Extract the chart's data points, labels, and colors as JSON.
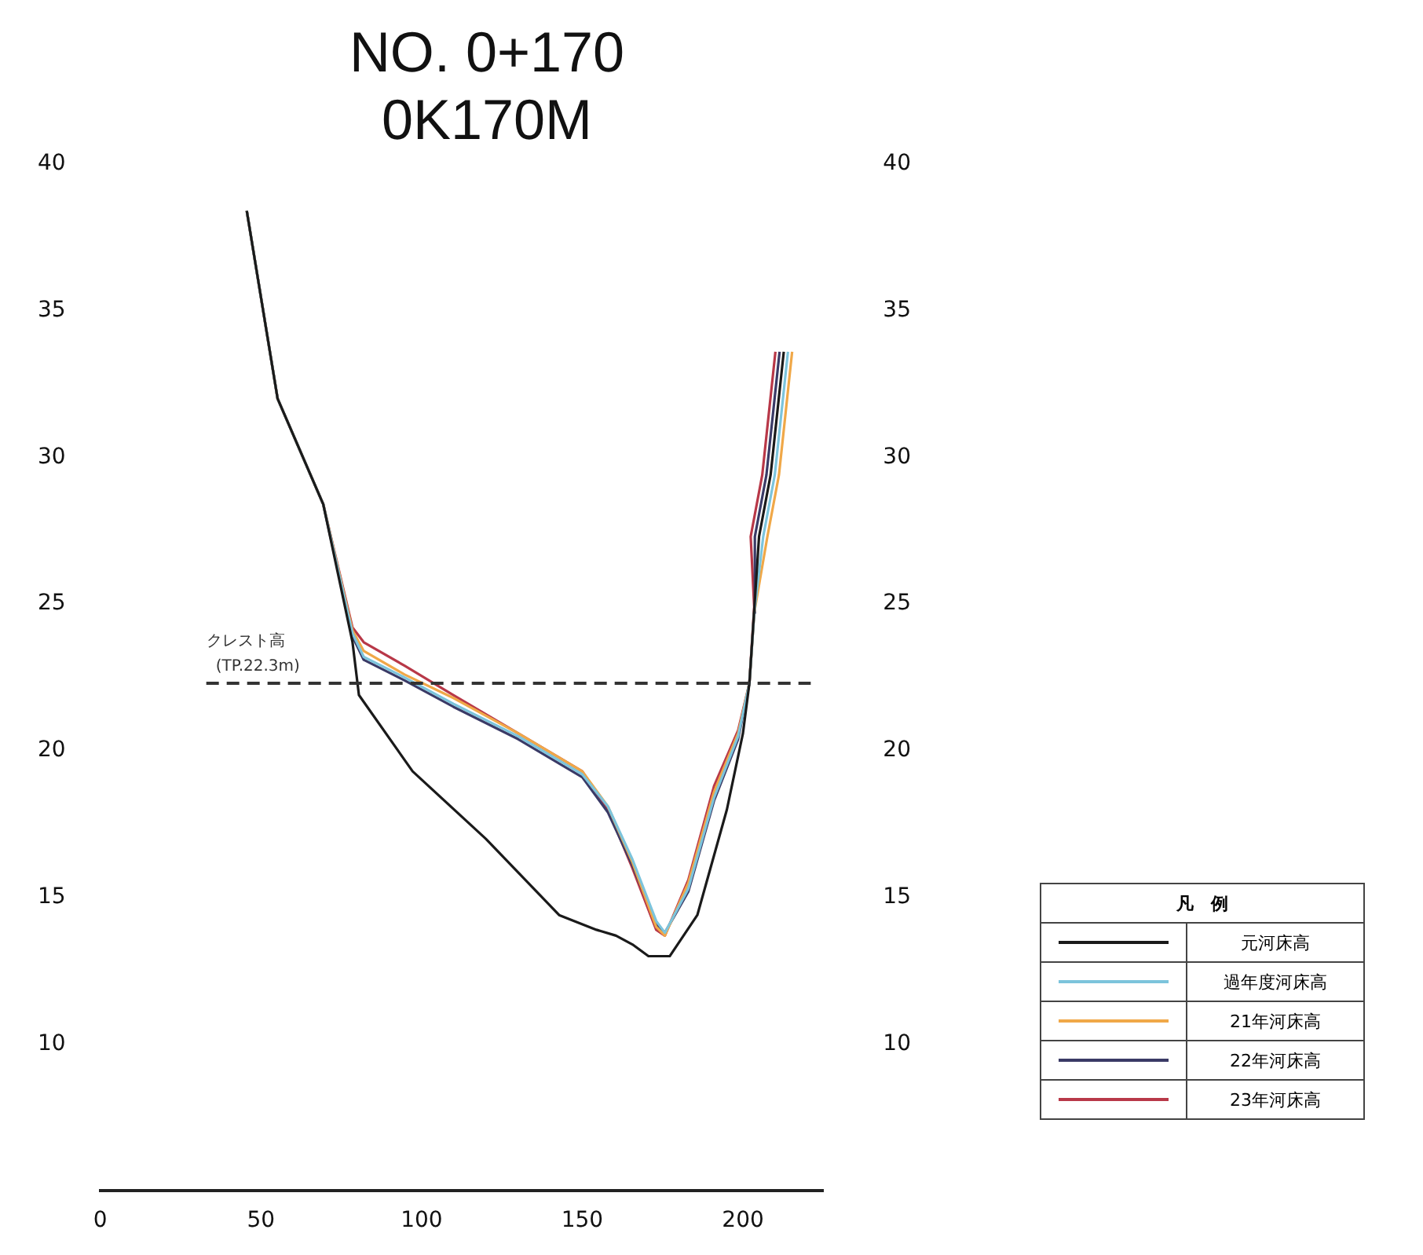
{
  "chart_data": {
    "type": "line",
    "title": "NO. 0+170",
    "subtitle": "0K170M",
    "legend_title": "凡　例",
    "legend": "right",
    "grid": false,
    "marker": "none",
    "line_style": "solid",
    "xlim": [
      0,
      225
    ],
    "xticks": [
      0,
      50,
      100,
      150,
      200
    ],
    "ylim": [
      5,
      40
    ],
    "yticks": [
      10,
      15,
      20,
      25,
      30,
      35,
      40
    ],
    "y2lim": [
      5,
      40
    ],
    "y2ticks": [
      10,
      15,
      20,
      25,
      30,
      35,
      40
    ],
    "ref_lines": [
      {
        "axis": "y",
        "value": 22.3,
        "label": "クレスト高 (TP.22.3m)",
        "color": "#333333",
        "line_style": "dashed"
      }
    ],
    "series": [
      {
        "name": "元河床高",
        "color": "#1a1a1a",
        "x": [
          45.6,
          55.2,
          69.4,
          78.5,
          80.5,
          97.2,
          120,
          142.8,
          154.4,
          160.5,
          165.6,
          170.6,
          177.2,
          185.8,
          195,
          200,
          202,
          205,
          208.6,
          212.7
        ],
        "values": [
          38.4,
          32,
          28.4,
          23.7,
          21.9,
          19.3,
          17,
          14.4,
          13.9,
          13.7,
          13.4,
          13,
          13,
          14.4,
          18,
          20.6,
          22.3,
          27.3,
          29.4,
          33.6
        ]
      },
      {
        "name": "過年度河床高",
        "color": "#7cc4dc",
        "x": [
          45.6,
          55.2,
          69.4,
          78.5,
          82,
          94.7,
          109.9,
          130,
          150,
          158,
          165.6,
          173,
          175.7,
          183,
          191,
          198.5,
          202,
          203.5,
          206.3,
          209.9,
          214
        ],
        "values": [
          38.4,
          32,
          28.4,
          24,
          23.2,
          22.5,
          21.6,
          20.5,
          19.2,
          18.1,
          16.3,
          14.2,
          13.8,
          15.3,
          18.4,
          20.5,
          22.3,
          24.7,
          27.3,
          29.4,
          33.6
        ]
      },
      {
        "name": "21年河床高",
        "color": "#f0a848",
        "x": [
          45.6,
          55.2,
          69.4,
          78.5,
          82,
          94.7,
          109.9,
          130,
          150,
          158,
          165.6,
          173,
          175.7,
          183,
          191,
          198.5,
          202,
          203.5,
          207.6,
          211.2,
          215.3
        ],
        "values": [
          38.4,
          32,
          28.4,
          24.1,
          23.4,
          22.6,
          21.8,
          20.6,
          19.3,
          18.1,
          16.2,
          14,
          13.7,
          15.5,
          18.6,
          20.6,
          22.3,
          24.7,
          27.3,
          29.4,
          33.6
        ]
      },
      {
        "name": "22年河床高",
        "color": "#3a3a66",
        "x": [
          45.6,
          55.2,
          69.4,
          78.5,
          82,
          94.7,
          109.9,
          130,
          150,
          158,
          165.6,
          173,
          175.7,
          183,
          191,
          198.5,
          202,
          203.5,
          203.7,
          207.3,
          211.4
        ],
        "values": [
          38.4,
          32,
          28.4,
          23.9,
          23.1,
          22.4,
          21.5,
          20.4,
          19.1,
          17.9,
          16.1,
          14.1,
          13.8,
          15.2,
          18.3,
          20.4,
          22.3,
          24.7,
          27.3,
          29.4,
          33.6
        ]
      },
      {
        "name": "23年河床高",
        "color": "#b83848",
        "x": [
          45.6,
          55.2,
          69.4,
          78.5,
          82,
          94.7,
          109.9,
          130,
          150,
          158,
          165.6,
          173,
          175.7,
          183,
          191,
          198.5,
          202,
          203.5,
          202.4,
          206,
          210.1
        ],
        "values": [
          38.4,
          32,
          28.4,
          24.2,
          23.7,
          22.9,
          21.9,
          20.6,
          19.3,
          18,
          16,
          13.9,
          13.7,
          15.6,
          18.8,
          20.7,
          22.3,
          24.9,
          27.3,
          29.4,
          33.6
        ]
      }
    ]
  }
}
